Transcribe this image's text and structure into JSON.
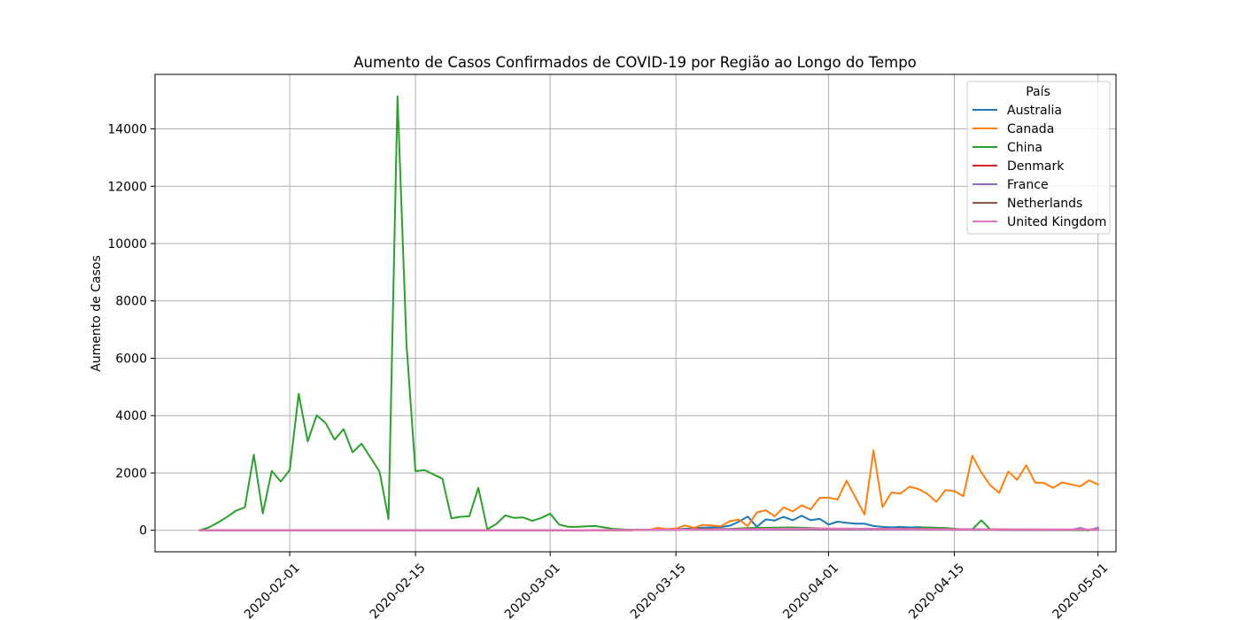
{
  "chart_data": {
    "type": "line",
    "title": "Aumento de Casos Confirmados de COVID-19 por Região ao Longo do Tempo",
    "xlabel": "",
    "ylabel": "Aumento de Casos",
    "x_axis": "date",
    "xlim": [
      "2020-01-17",
      "2020-05-03"
    ],
    "ylim": [
      -750,
      15900
    ],
    "grid": true,
    "x_ticks": [
      {
        "date": "2020-02-01",
        "label": "2020-02-01"
      },
      {
        "date": "2020-02-15",
        "label": "2020-02-15"
      },
      {
        "date": "2020-03-01",
        "label": "2020-03-01"
      },
      {
        "date": "2020-03-15",
        "label": "2020-03-15"
      },
      {
        "date": "2020-04-01",
        "label": "2020-04-01"
      },
      {
        "date": "2020-04-15",
        "label": "2020-04-15"
      },
      {
        "date": "2020-05-01",
        "label": "2020-05-01"
      }
    ],
    "y_ticks": [
      {
        "value": 0,
        "label": "0"
      },
      {
        "value": 2000,
        "label": "2000"
      },
      {
        "value": 4000,
        "label": "4000"
      },
      {
        "value": 6000,
        "label": "6000"
      },
      {
        "value": 8000,
        "label": "8000"
      },
      {
        "value": 10000,
        "label": "10000"
      },
      {
        "value": 12000,
        "label": "12000"
      },
      {
        "value": 14000,
        "label": "14000"
      }
    ],
    "legend": {
      "title": "País",
      "position": "top-right"
    },
    "series": [
      {
        "name": "Australia",
        "color": "#1f77b4",
        "points": [
          [
            "2020-01-22",
            0
          ],
          [
            "2020-03-01",
            0
          ],
          [
            "2020-03-10",
            5
          ],
          [
            "2020-03-15",
            30
          ],
          [
            "2020-03-18",
            90
          ],
          [
            "2020-03-20",
            110
          ],
          [
            "2020-03-21",
            160
          ],
          [
            "2020-03-22",
            300
          ],
          [
            "2020-03-23",
            480
          ],
          [
            "2020-03-24",
            120
          ],
          [
            "2020-03-25",
            380
          ],
          [
            "2020-03-26",
            340
          ],
          [
            "2020-03-27",
            470
          ],
          [
            "2020-03-28",
            350
          ],
          [
            "2020-03-29",
            510
          ],
          [
            "2020-03-30",
            350
          ],
          [
            "2020-03-31",
            400
          ],
          [
            "2020-04-01",
            200
          ],
          [
            "2020-04-02",
            300
          ],
          [
            "2020-04-03",
            260
          ],
          [
            "2020-04-04",
            230
          ],
          [
            "2020-04-05",
            230
          ],
          [
            "2020-04-06",
            150
          ],
          [
            "2020-04-07",
            120
          ],
          [
            "2020-04-08",
            100
          ],
          [
            "2020-04-09",
            120
          ],
          [
            "2020-04-10",
            100
          ],
          [
            "2020-04-11",
            110
          ],
          [
            "2020-04-12",
            90
          ],
          [
            "2020-04-13",
            80
          ],
          [
            "2020-04-14",
            60
          ],
          [
            "2020-04-15",
            40
          ],
          [
            "2020-04-16",
            30
          ],
          [
            "2020-04-17",
            20
          ],
          [
            "2020-04-18",
            20
          ],
          [
            "2020-04-19",
            30
          ],
          [
            "2020-04-20",
            15
          ],
          [
            "2020-04-22",
            10
          ],
          [
            "2020-04-25",
            10
          ],
          [
            "2020-04-27",
            15
          ],
          [
            "2020-04-30",
            10
          ]
        ]
      },
      {
        "name": "Canada",
        "color": "#ff7f0e",
        "points": [
          [
            "2020-01-22",
            0
          ],
          [
            "2020-03-01",
            0
          ],
          [
            "2020-03-12",
            20
          ],
          [
            "2020-03-13",
            90
          ],
          [
            "2020-03-14",
            40
          ],
          [
            "2020-03-15",
            60
          ],
          [
            "2020-03-16",
            170
          ],
          [
            "2020-03-17",
            80
          ],
          [
            "2020-03-18",
            190
          ],
          [
            "2020-03-19",
            170
          ],
          [
            "2020-03-20",
            140
          ],
          [
            "2020-03-21",
            320
          ],
          [
            "2020-03-22",
            370
          ],
          [
            "2020-03-23",
            150
          ],
          [
            "2020-03-24",
            620
          ],
          [
            "2020-03-25",
            700
          ],
          [
            "2020-03-26",
            490
          ],
          [
            "2020-03-27",
            800
          ],
          [
            "2020-03-28",
            660
          ],
          [
            "2020-03-29",
            870
          ],
          [
            "2020-03-30",
            730
          ],
          [
            "2020-03-31",
            1130
          ],
          [
            "2020-04-01",
            1140
          ],
          [
            "2020-04-02",
            1070
          ],
          [
            "2020-04-03",
            1730
          ],
          [
            "2020-04-05",
            550
          ],
          [
            "2020-04-06",
            2790
          ],
          [
            "2020-04-07",
            810
          ],
          [
            "2020-04-08",
            1320
          ],
          [
            "2020-04-09",
            1280
          ],
          [
            "2020-04-10",
            1520
          ],
          [
            "2020-04-11",
            1440
          ],
          [
            "2020-04-12",
            1270
          ],
          [
            "2020-04-13",
            990
          ],
          [
            "2020-04-14",
            1400
          ],
          [
            "2020-04-15",
            1370
          ],
          [
            "2020-04-16",
            1190
          ],
          [
            "2020-04-17",
            2600
          ],
          [
            "2020-04-18",
            2020
          ],
          [
            "2020-04-19",
            1570
          ],
          [
            "2020-04-20",
            1310
          ],
          [
            "2020-04-21",
            2050
          ],
          [
            "2020-04-22",
            1760
          ],
          [
            "2020-04-23",
            2270
          ],
          [
            "2020-04-24",
            1660
          ],
          [
            "2020-04-25",
            1650
          ],
          [
            "2020-04-26",
            1480
          ],
          [
            "2020-04-27",
            1670
          ],
          [
            "2020-04-28",
            1600
          ],
          [
            "2020-04-29",
            1530
          ],
          [
            "2020-04-30",
            1740
          ],
          [
            "2020-05-01",
            1600
          ]
        ]
      },
      {
        "name": "China",
        "color": "#2ca02c",
        "points": [
          [
            "2020-01-22",
            0
          ],
          [
            "2020-01-23",
            100
          ],
          [
            "2020-01-24",
            270
          ],
          [
            "2020-01-25",
            460
          ],
          [
            "2020-01-26",
            680
          ],
          [
            "2020-01-27",
            800
          ],
          [
            "2020-01-28",
            2640
          ],
          [
            "2020-01-29",
            590
          ],
          [
            "2020-01-30",
            2070
          ],
          [
            "2020-01-31",
            1700
          ],
          [
            "2020-02-01",
            2100
          ],
          [
            "2020-02-02",
            4760
          ],
          [
            "2020-02-03",
            3100
          ],
          [
            "2020-02-04",
            4010
          ],
          [
            "2020-02-05",
            3740
          ],
          [
            "2020-02-06",
            3160
          ],
          [
            "2020-02-07",
            3530
          ],
          [
            "2020-02-08",
            2720
          ],
          [
            "2020-02-09",
            3020
          ],
          [
            "2020-02-11",
            2050
          ],
          [
            "2020-02-12",
            390
          ],
          [
            "2020-02-13",
            15130
          ],
          [
            "2020-02-14",
            6500
          ],
          [
            "2020-02-15",
            2060
          ],
          [
            "2020-02-16",
            2100
          ],
          [
            "2020-02-18",
            1800
          ],
          [
            "2020-02-19",
            420
          ],
          [
            "2020-02-20",
            470
          ],
          [
            "2020-02-21",
            490
          ],
          [
            "2020-02-22",
            1480
          ],
          [
            "2020-02-23",
            40
          ],
          [
            "2020-02-24",
            220
          ],
          [
            "2020-02-25",
            520
          ],
          [
            "2020-02-26",
            430
          ],
          [
            "2020-02-27",
            450
          ],
          [
            "2020-02-28",
            330
          ],
          [
            "2020-02-29",
            430
          ],
          [
            "2020-03-01",
            580
          ],
          [
            "2020-03-02",
            200
          ],
          [
            "2020-03-03",
            120
          ],
          [
            "2020-03-04",
            120
          ],
          [
            "2020-03-05",
            140
          ],
          [
            "2020-03-06",
            150
          ],
          [
            "2020-03-07",
            100
          ],
          [
            "2020-03-08",
            50
          ],
          [
            "2020-03-10",
            20
          ],
          [
            "2020-03-12",
            20
          ],
          [
            "2020-03-15",
            20
          ],
          [
            "2020-03-18",
            40
          ],
          [
            "2020-03-21",
            50
          ],
          [
            "2020-03-23",
            80
          ],
          [
            "2020-03-26",
            90
          ],
          [
            "2020-03-28",
            100
          ],
          [
            "2020-03-30",
            80
          ],
          [
            "2020-04-01",
            50
          ],
          [
            "2020-04-05",
            50
          ],
          [
            "2020-04-10",
            50
          ],
          [
            "2020-04-12",
            100
          ],
          [
            "2020-04-14",
            80
          ],
          [
            "2020-04-16",
            30
          ],
          [
            "2020-04-17",
            30
          ],
          [
            "2020-04-18",
            350
          ],
          [
            "2020-04-19",
            30
          ],
          [
            "2020-04-22",
            20
          ],
          [
            "2020-04-26",
            10
          ],
          [
            "2020-04-30",
            5
          ]
        ]
      },
      {
        "name": "Denmark",
        "color": "#d62728",
        "points": [
          [
            "2020-01-22",
            0
          ],
          [
            "2020-03-10",
            0
          ],
          [
            "2020-03-11",
            20
          ],
          [
            "2020-03-18",
            30
          ],
          [
            "2020-03-25",
            50
          ],
          [
            "2020-04-01",
            60
          ],
          [
            "2020-04-08",
            50
          ],
          [
            "2020-04-15",
            40
          ],
          [
            "2020-04-22",
            30
          ],
          [
            "2020-05-01",
            20
          ]
        ]
      },
      {
        "name": "France",
        "color": "#9467bd",
        "points": [
          [
            "2020-01-22",
            0
          ],
          [
            "2020-03-01",
            0
          ],
          [
            "2020-03-10",
            10
          ],
          [
            "2020-03-20",
            20
          ],
          [
            "2020-04-01",
            30
          ],
          [
            "2020-04-15",
            20
          ],
          [
            "2020-04-28",
            10
          ],
          [
            "2020-04-29",
            80
          ],
          [
            "2020-04-30",
            10
          ],
          [
            "2020-05-01",
            90
          ]
        ]
      },
      {
        "name": "Netherlands",
        "color": "#8c564b",
        "points": [
          [
            "2020-01-22",
            0
          ],
          [
            "2020-03-01",
            0
          ],
          [
            "2020-03-15",
            20
          ],
          [
            "2020-03-25",
            50
          ],
          [
            "2020-04-01",
            40
          ],
          [
            "2020-04-10",
            40
          ],
          [
            "2020-04-20",
            20
          ],
          [
            "2020-05-01",
            20
          ]
        ]
      },
      {
        "name": "United Kingdom",
        "color": "#e377c2",
        "points": [
          [
            "2020-01-22",
            0
          ],
          [
            "2020-03-01",
            0
          ],
          [
            "2020-03-20",
            30
          ],
          [
            "2020-03-30",
            60
          ],
          [
            "2020-04-10",
            40
          ],
          [
            "2020-04-20",
            30
          ],
          [
            "2020-05-01",
            30
          ]
        ]
      }
    ]
  }
}
